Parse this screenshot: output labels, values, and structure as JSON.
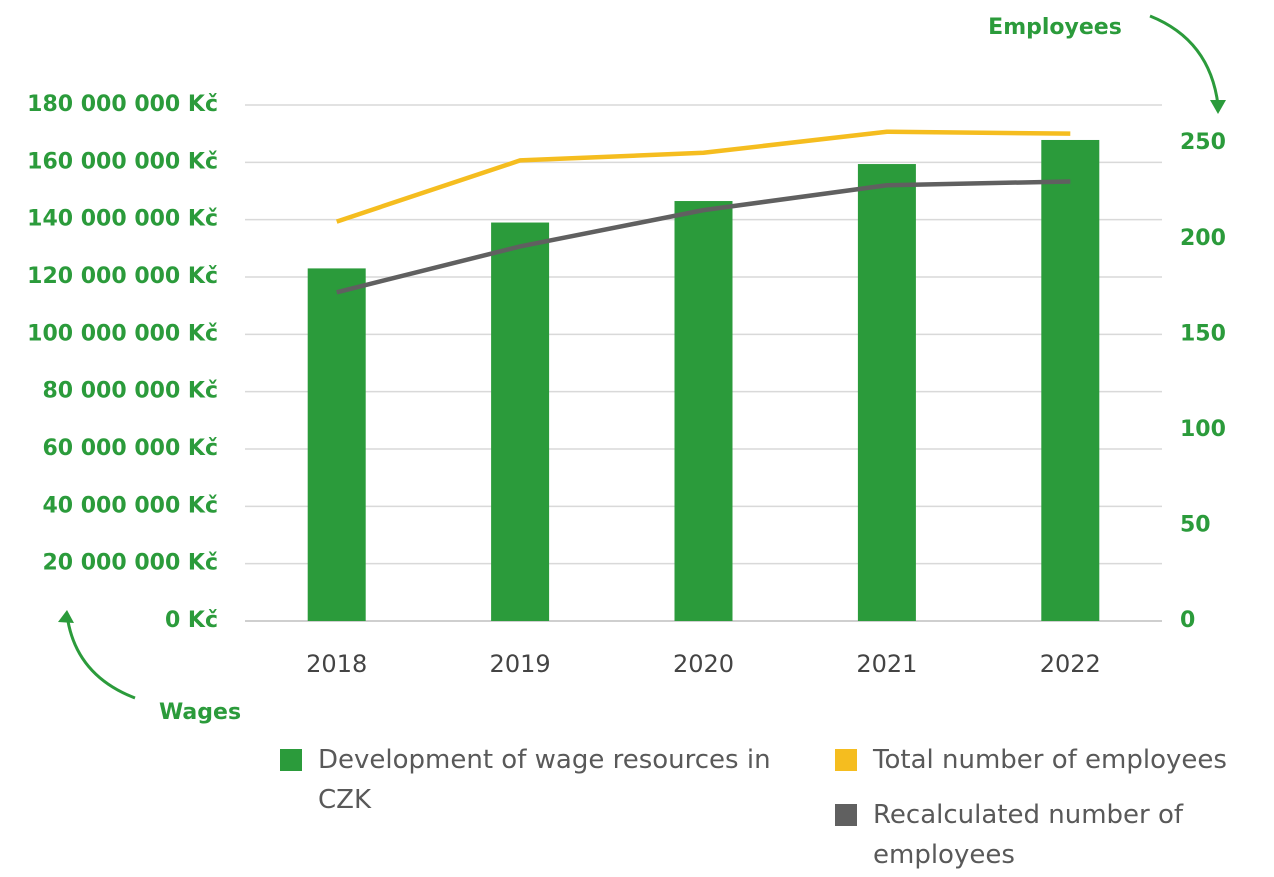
{
  "chart_data": {
    "type": "bar_line",
    "categories": [
      "2018",
      "2019",
      "2020",
      "2021",
      "2022"
    ],
    "series": [
      {
        "name": "Development of wage resources in CZK",
        "color": "#2b9b3b",
        "type": "bar",
        "values": [
          123000000,
          139000000,
          146500000,
          159400000,
          167800000
        ]
      },
      {
        "name": "Total number of employees",
        "color": "#f5bd1f",
        "type": "line",
        "axis": "y2",
        "values": [
          209,
          241,
          245,
          256,
          255
        ]
      },
      {
        "name": "Recalculated number of employees",
        "color": "#606060",
        "type": "line",
        "axis": "y2",
        "values": [
          172,
          196,
          215,
          228,
          230
        ]
      }
    ],
    "ylabel": "Wages",
    "y2label": "Employees",
    "ylim": [
      0,
      180000000
    ],
    "yticks": [
      {
        "value": 0,
        "label": "0 Kč"
      },
      {
        "value": 20000000,
        "label": "20 000 000 Kč"
      },
      {
        "value": 40000000,
        "label": "40 000 000 Kč"
      },
      {
        "value": 60000000,
        "label": "60 000 000 Kč"
      },
      {
        "value": 80000000,
        "label": "80 000 000 Kč"
      },
      {
        "value": 100000000,
        "label": "100 000 000 Kč"
      },
      {
        "value": 120000000,
        "label": "120 000 000 Kč"
      },
      {
        "value": 140000000,
        "label": "140 000 000 Kč"
      },
      {
        "value": 160000000,
        "label": "160 000 000 Kč"
      },
      {
        "value": 180000000,
        "label": "180 000 000 Kč"
      }
    ],
    "y2lim": [
      0,
      270
    ],
    "y2ticks": [
      0,
      50,
      100,
      150,
      200,
      250
    ],
    "grid": true,
    "legend": "bottom"
  }
}
